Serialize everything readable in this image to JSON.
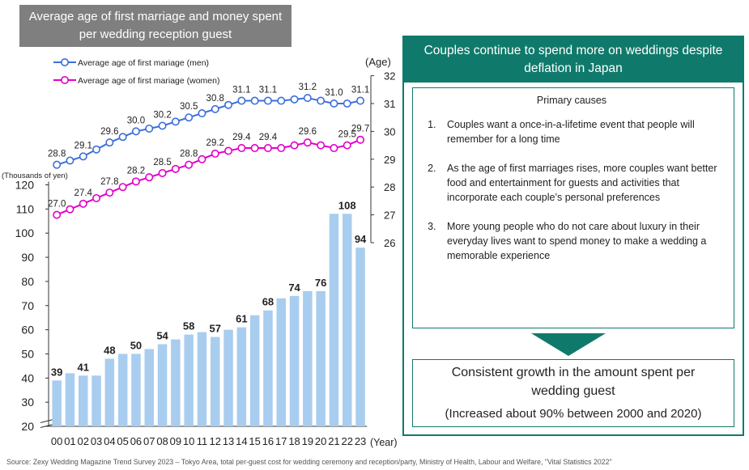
{
  "title": "Average age of first marriage and money spent per wedding reception guest",
  "chart_data": {
    "type": "bar+line",
    "categories": [
      "00",
      "01",
      "02",
      "03",
      "04",
      "05",
      "06",
      "07",
      "08",
      "09",
      "10",
      "11",
      "12",
      "13",
      "14",
      "15",
      "16",
      "17",
      "18",
      "19",
      "20",
      "21",
      "22",
      "23"
    ],
    "x_unit": "(Year)",
    "bar_series": {
      "unit": "(Thousands of yen)",
      "values": [
        39,
        42,
        41,
        41,
        48,
        50,
        50,
        52,
        54,
        56,
        58,
        59,
        57,
        60,
        61,
        66,
        68,
        73,
        74,
        76,
        76,
        108,
        108,
        94
      ],
      "data_labels": [
        {
          "index": 0,
          "text": "39"
        },
        {
          "index": 2,
          "text": "41"
        },
        {
          "index": 4,
          "text": "48"
        },
        {
          "index": 6,
          "text": "50"
        },
        {
          "index": 8,
          "text": "54"
        },
        {
          "index": 10,
          "text": "58"
        },
        {
          "index": 12,
          "text": "57"
        },
        {
          "index": 14,
          "text": "61"
        },
        {
          "index": 16,
          "text": "68"
        },
        {
          "index": 18,
          "text": "74"
        },
        {
          "index": 20,
          "text": "76"
        },
        {
          "index": 22,
          "text": "108"
        },
        {
          "index": 23,
          "text": "94"
        }
      ],
      "y_ticks": [
        "20",
        "30",
        "40",
        "50",
        "60",
        "70",
        "80",
        "90",
        "100",
        "110",
        "120"
      ],
      "ylim": [
        20,
        120
      ],
      "color": "#a9cdef"
    },
    "line_series": [
      {
        "name": "Average age of first mariage (men)",
        "values": [
          28.8,
          28.95,
          29.1,
          29.35,
          29.6,
          29.8,
          30.0,
          30.1,
          30.2,
          30.35,
          30.5,
          30.65,
          30.8,
          30.95,
          31.1,
          31.1,
          31.1,
          31.1,
          31.15,
          31.2,
          31.1,
          31.0,
          31.0,
          31.1
        ],
        "data_labels": [
          {
            "index": 0,
            "text": "28.8"
          },
          {
            "index": 2,
            "text": "29.1"
          },
          {
            "index": 4,
            "text": "29.6"
          },
          {
            "index": 6,
            "text": "30.0"
          },
          {
            "index": 8,
            "text": "30.2"
          },
          {
            "index": 10,
            "text": "30.5"
          },
          {
            "index": 12,
            "text": "30.8"
          },
          {
            "index": 14,
            "text": "31.1"
          },
          {
            "index": 16,
            "text": "31.1"
          },
          {
            "index": 19,
            "text": "31.2"
          },
          {
            "index": 21,
            "text": "31.0"
          },
          {
            "index": 23,
            "text": "31.1"
          }
        ],
        "color": "#3b6fd9"
      },
      {
        "name": "Average age of first mariage (women)",
        "values": [
          27.0,
          27.2,
          27.4,
          27.6,
          27.8,
          28.0,
          28.2,
          28.35,
          28.5,
          28.65,
          28.8,
          29.0,
          29.2,
          29.3,
          29.4,
          29.4,
          29.4,
          29.4,
          29.5,
          29.6,
          29.5,
          29.4,
          29.5,
          29.7
        ],
        "data_labels": [
          {
            "index": 0,
            "text": "27.0"
          },
          {
            "index": 2,
            "text": "27.4"
          },
          {
            "index": 4,
            "text": "27.8"
          },
          {
            "index": 6,
            "text": "28.2"
          },
          {
            "index": 8,
            "text": "28.5"
          },
          {
            "index": 10,
            "text": "28.8"
          },
          {
            "index": 12,
            "text": "29.2"
          },
          {
            "index": 14,
            "text": "29.4"
          },
          {
            "index": 16,
            "text": "29.4"
          },
          {
            "index": 19,
            "text": "29.6"
          },
          {
            "index": 22,
            "text": "29.5"
          },
          {
            "index": 23,
            "text": "29.7"
          }
        ],
        "color": "#e100c8"
      }
    ],
    "y2_unit": "(Age)",
    "y2_ticks": [
      "26",
      "27",
      "28",
      "29",
      "30",
      "31",
      "32"
    ],
    "y2lim": [
      26,
      32
    ],
    "legend_position": "top-left",
    "grid": false
  },
  "panel": {
    "header": "Couples continue to spend more on weddings despite deflation in Japan",
    "causes_title": "Primary causes",
    "causes": [
      "Couples want a once-in-a-lifetime event that people will remember for a long time",
      "As the age of first marriages rises, more couples want better food and entertainment for guests and activities that incorporate each couple’s personal preferences",
      "More young people who do not care about luxury in their everyday lives want to spend money to make a wedding a memorable experience"
    ],
    "result": "Consistent growth in the amount spent per wedding guest",
    "result_sub": "(Increased about 90% between 2000 and 2020)",
    "accent_color": "#0f7a6b"
  },
  "source": "Source: Zexy Wedding Magazine Trend Survey 2023 – Tokyo Area, total per-guest cost for wedding ceremony and reception/party, Ministry of Health, Labour and Welfare, \"Vital Statistics 2022\""
}
